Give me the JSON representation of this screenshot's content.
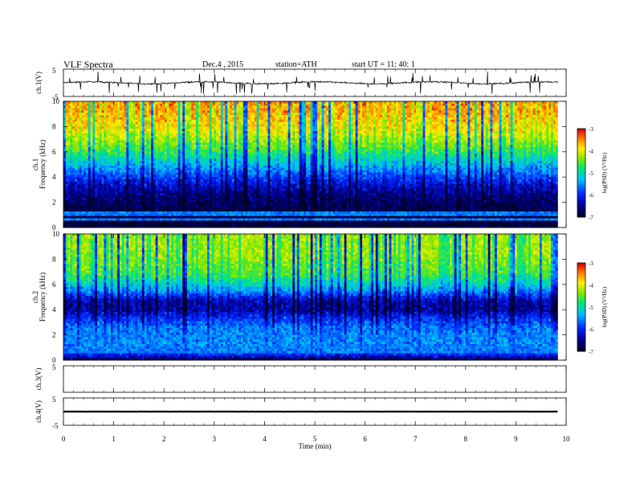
{
  "header": {
    "title": "VLF  Spectra",
    "date": "Dec.4  , 2015",
    "station": "station=ATH",
    "start": "start  UT  =    11: 40: 1"
  },
  "chart_data": [
    {
      "type": "line",
      "name": "ch1-waveform",
      "ylabel": "ch.1(V)",
      "ylim": [
        -5,
        5
      ],
      "ticks": [
        "5",
        "-5"
      ],
      "xlim": [
        0,
        10
      ],
      "x_extent": [
        0,
        9.83
      ],
      "baseline": 0,
      "color": "#000000"
    },
    {
      "type": "heatmap",
      "name": "ch1-spectrogram",
      "ylabel": [
        "ch.1",
        "Frequency  (kHz)"
      ],
      "ylim": [
        0,
        10
      ],
      "yticks": [
        "0",
        "2",
        "4",
        "6",
        "8",
        "10"
      ],
      "xlim": [
        0,
        10
      ],
      "x_extent": [
        0,
        9.83
      ],
      "intensity_profile": [
        -6.9,
        -6.9,
        -6.8,
        -6.7,
        -6.5,
        -6.2,
        -5.8,
        -5.4,
        -5.0,
        -4.6,
        -4.3,
        -4.0,
        -3.8,
        -3.65,
        -3.55,
        -3.5
      ],
      "colorbar": {
        "label": "log(PSD) (V²/Hz)",
        "range": [
          -7,
          -3
        ],
        "ticks": [
          "-3",
          "-4",
          "-5",
          "-6",
          "-7"
        ]
      }
    },
    {
      "type": "heatmap",
      "name": "ch2-spectrogram",
      "ylabel": [
        "ch.2",
        "Frequency  (kHz)"
      ],
      "ylim": [
        0,
        10
      ],
      "yticks": [
        "0",
        "2",
        "4",
        "6",
        "8",
        "10"
      ],
      "xlim": [
        0,
        10
      ],
      "x_extent": [
        0,
        9.83
      ],
      "intensity_profile": [
        -6.8,
        -5.6,
        -5.5,
        -5.5,
        -5.6,
        -5.9,
        -6.4,
        -6.3,
        -5.6,
        -5.0,
        -4.6,
        -4.4,
        -4.3,
        -4.2,
        -4.2,
        -4.2
      ],
      "colorbar": {
        "label": "log(PSD) (V²/Hz)",
        "range": [
          -7,
          -3
        ],
        "ticks": [
          "-3",
          "-4",
          "-5",
          "-6",
          "-7"
        ]
      }
    },
    {
      "type": "line",
      "name": "ch3-waveform",
      "ylabel": "ch.3(V)",
      "ylim": [
        -5,
        5
      ],
      "ticks": [
        "5"
      ],
      "xlim": [
        0,
        10
      ],
      "values": []
    },
    {
      "type": "line",
      "name": "ch4-waveform",
      "ylabel": "ch.4(V)",
      "ylim": [
        -5,
        5
      ],
      "ticks": [
        "5",
        "-5"
      ],
      "xlim": [
        0,
        10
      ],
      "x_extent": [
        0,
        9.83
      ],
      "baseline": 0,
      "color": "#000000"
    }
  ],
  "xaxis": {
    "label": "Time  (min)",
    "ticks": [
      "0",
      "1",
      "2",
      "3",
      "4",
      "5",
      "6",
      "7",
      "8",
      "9",
      "10"
    ]
  }
}
